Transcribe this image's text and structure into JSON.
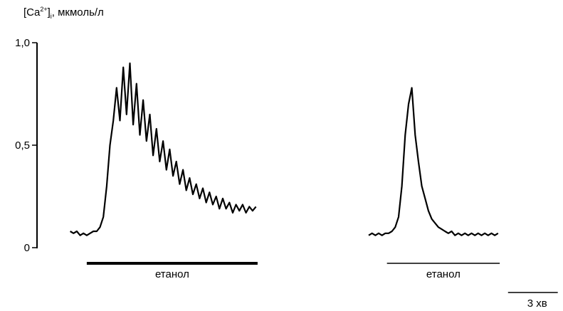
{
  "chart_data": {
    "type": "line",
    "ylabel": [
      "[Ca",
      "2+",
      "]",
      "i",
      ", мкмоль/л"
    ],
    "ylim": [
      0,
      1
    ],
    "yticks": [
      0,
      {
        "value": 0.5,
        "label": "0,5"
      },
      {
        "value": 1,
        "label": "1,0"
      }
    ],
    "xlim": [
      -2,
      29.5
    ],
    "series": [
      {
        "color": "#000000",
        "x": [
          0,
          0.2,
          0.4,
          0.6,
          0.8,
          1.0,
          1.2,
          1.4,
          1.6,
          1.8,
          2.0,
          2.2,
          2.4,
          2.6,
          2.8,
          3.0,
          3.2,
          3.4,
          3.6,
          3.8,
          4.0,
          4.2,
          4.4,
          4.6,
          4.8,
          5.0,
          5.2,
          5.4,
          5.6,
          5.8,
          6.0,
          6.2,
          6.4,
          6.6,
          6.8,
          7.0,
          7.2,
          7.4,
          7.6,
          7.8,
          8.0,
          8.2,
          8.4,
          8.6,
          8.8,
          9.0,
          9.2,
          9.4,
          9.6,
          9.8,
          10.0,
          10.2,
          10.4,
          10.6,
          10.8,
          11.0,
          11.2
        ],
        "values": [
          0.08,
          0.07,
          0.08,
          0.06,
          0.07,
          0.06,
          0.07,
          0.08,
          0.08,
          0.1,
          0.15,
          0.3,
          0.5,
          0.62,
          0.78,
          0.62,
          0.88,
          0.65,
          0.9,
          0.6,
          0.8,
          0.55,
          0.72,
          0.52,
          0.65,
          0.45,
          0.58,
          0.42,
          0.52,
          0.38,
          0.48,
          0.35,
          0.42,
          0.31,
          0.38,
          0.28,
          0.34,
          0.26,
          0.31,
          0.24,
          0.29,
          0.22,
          0.27,
          0.21,
          0.25,
          0.19,
          0.24,
          0.19,
          0.22,
          0.17,
          0.21,
          0.18,
          0.21,
          0.17,
          0.2,
          0.18,
          0.2
        ]
      },
      {
        "color": "#000000",
        "x": [
          18.0,
          18.2,
          18.4,
          18.6,
          18.8,
          19.0,
          19.2,
          19.4,
          19.6,
          19.8,
          20.0,
          20.2,
          20.4,
          20.6,
          20.8,
          21.0,
          21.2,
          21.4,
          21.6,
          21.8,
          22.0,
          22.2,
          22.4,
          22.6,
          22.8,
          23.0,
          23.2,
          23.4,
          23.6,
          23.8,
          24.0,
          24.2,
          24.4,
          24.6,
          24.8,
          25.0,
          25.2,
          25.4,
          25.6,
          25.8
        ],
        "values": [
          0.06,
          0.07,
          0.06,
          0.07,
          0.06,
          0.07,
          0.07,
          0.08,
          0.1,
          0.15,
          0.3,
          0.55,
          0.7,
          0.78,
          0.55,
          0.42,
          0.3,
          0.24,
          0.18,
          0.14,
          0.12,
          0.1,
          0.09,
          0.08,
          0.07,
          0.08,
          0.06,
          0.07,
          0.06,
          0.07,
          0.06,
          0.07,
          0.06,
          0.07,
          0.06,
          0.07,
          0.06,
          0.07,
          0.06,
          0.07
        ]
      }
    ],
    "stimuli": [
      {
        "label": "етанол",
        "start": 1.0,
        "end": 11.3
      },
      {
        "label": "етанол",
        "start": 19.1,
        "end": 25.9
      }
    ],
    "scale_bar": {
      "start": 26.4,
      "length": 3,
      "label": "3 хв"
    }
  }
}
